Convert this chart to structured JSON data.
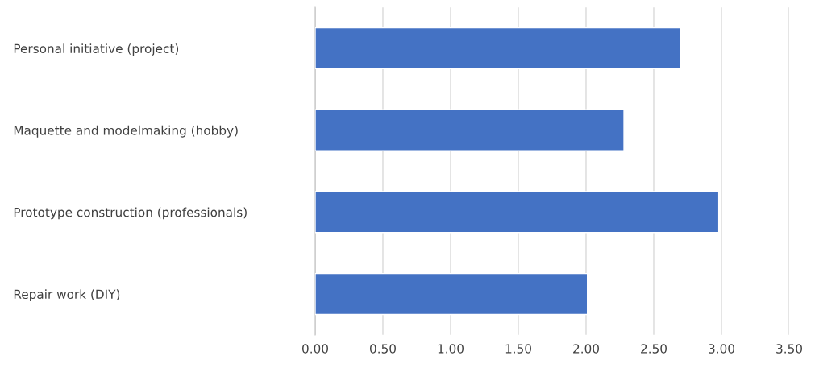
{
  "chart_data": {
    "type": "bar",
    "orientation": "horizontal",
    "categories": [
      "Personal initiative (project)",
      "Maquette and modelmaking (hobby)",
      "Prototype construction (professionals)",
      "Repair work (DIY)"
    ],
    "values": [
      2.7,
      2.28,
      2.98,
      2.01
    ],
    "color": "#4472c4",
    "xlim": [
      0,
      3.5
    ],
    "xticks": [
      {
        "value": 0,
        "label": "0.00"
      },
      {
        "value": 0.5,
        "label": "0.50"
      },
      {
        "value": 1,
        "label": "1.00"
      },
      {
        "value": 1.5,
        "label": "1.50"
      },
      {
        "value": 2,
        "label": "2.00"
      },
      {
        "value": 2.5,
        "label": "2.50"
      },
      {
        "value": 3,
        "label": "3.00"
      },
      {
        "value": 3.5,
        "label": "3.50"
      }
    ],
    "grid": "x"
  }
}
